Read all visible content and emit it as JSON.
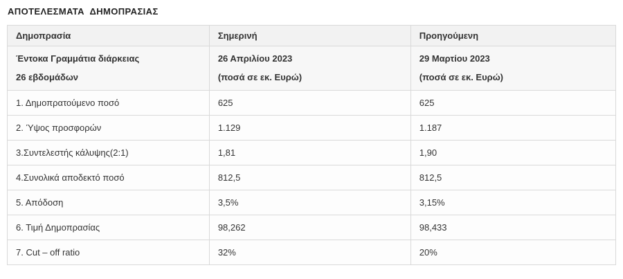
{
  "page_title": "ΑΠΟΤΕΛΕΣΜΑΤΑ  ΔΗΜΟΠΡΑΣΙΑΣ",
  "colors": {
    "header_bg": "#f2f2f2",
    "subheader_bg": "#f7f7f7",
    "row_bg": "#fdfdfd",
    "border": "#d9d9d9",
    "text": "#333333"
  },
  "table": {
    "header": [
      "Δημοπρασία",
      "Σημερινή",
      "Προηγούμενη"
    ],
    "subheader": [
      {
        "line1": "Έντοκα Γραμμάτια διάρκειας",
        "line2": "26 εβδομάδων"
      },
      {
        "line1": "26 Απριλίου 2023",
        "line2": "(ποσά σε εκ. Ευρώ)"
      },
      {
        "line1": "29 Μαρτίου 2023",
        "line2": "(ποσά σε εκ. Ευρώ)"
      }
    ],
    "rows": [
      [
        "1. Δημοπρατούμενο ποσό",
        "625",
        "625"
      ],
      [
        "2. Ύψος προσφορών",
        "1.129",
        "1.187"
      ],
      [
        "3.Συντελεστής κάλυψης(2:1)",
        "1,81",
        "1,90"
      ],
      [
        "4.Συνολικά αποδεκτό ποσό",
        "812,5",
        "812,5"
      ],
      [
        "5. Απόδοση",
        "3,5%",
        "3,15%"
      ],
      [
        "6. Τιμή Δημοπρασίας",
        "98,262",
        "98,433"
      ],
      [
        "7. Cut – off ratio",
        "32%",
        "20%"
      ]
    ]
  }
}
